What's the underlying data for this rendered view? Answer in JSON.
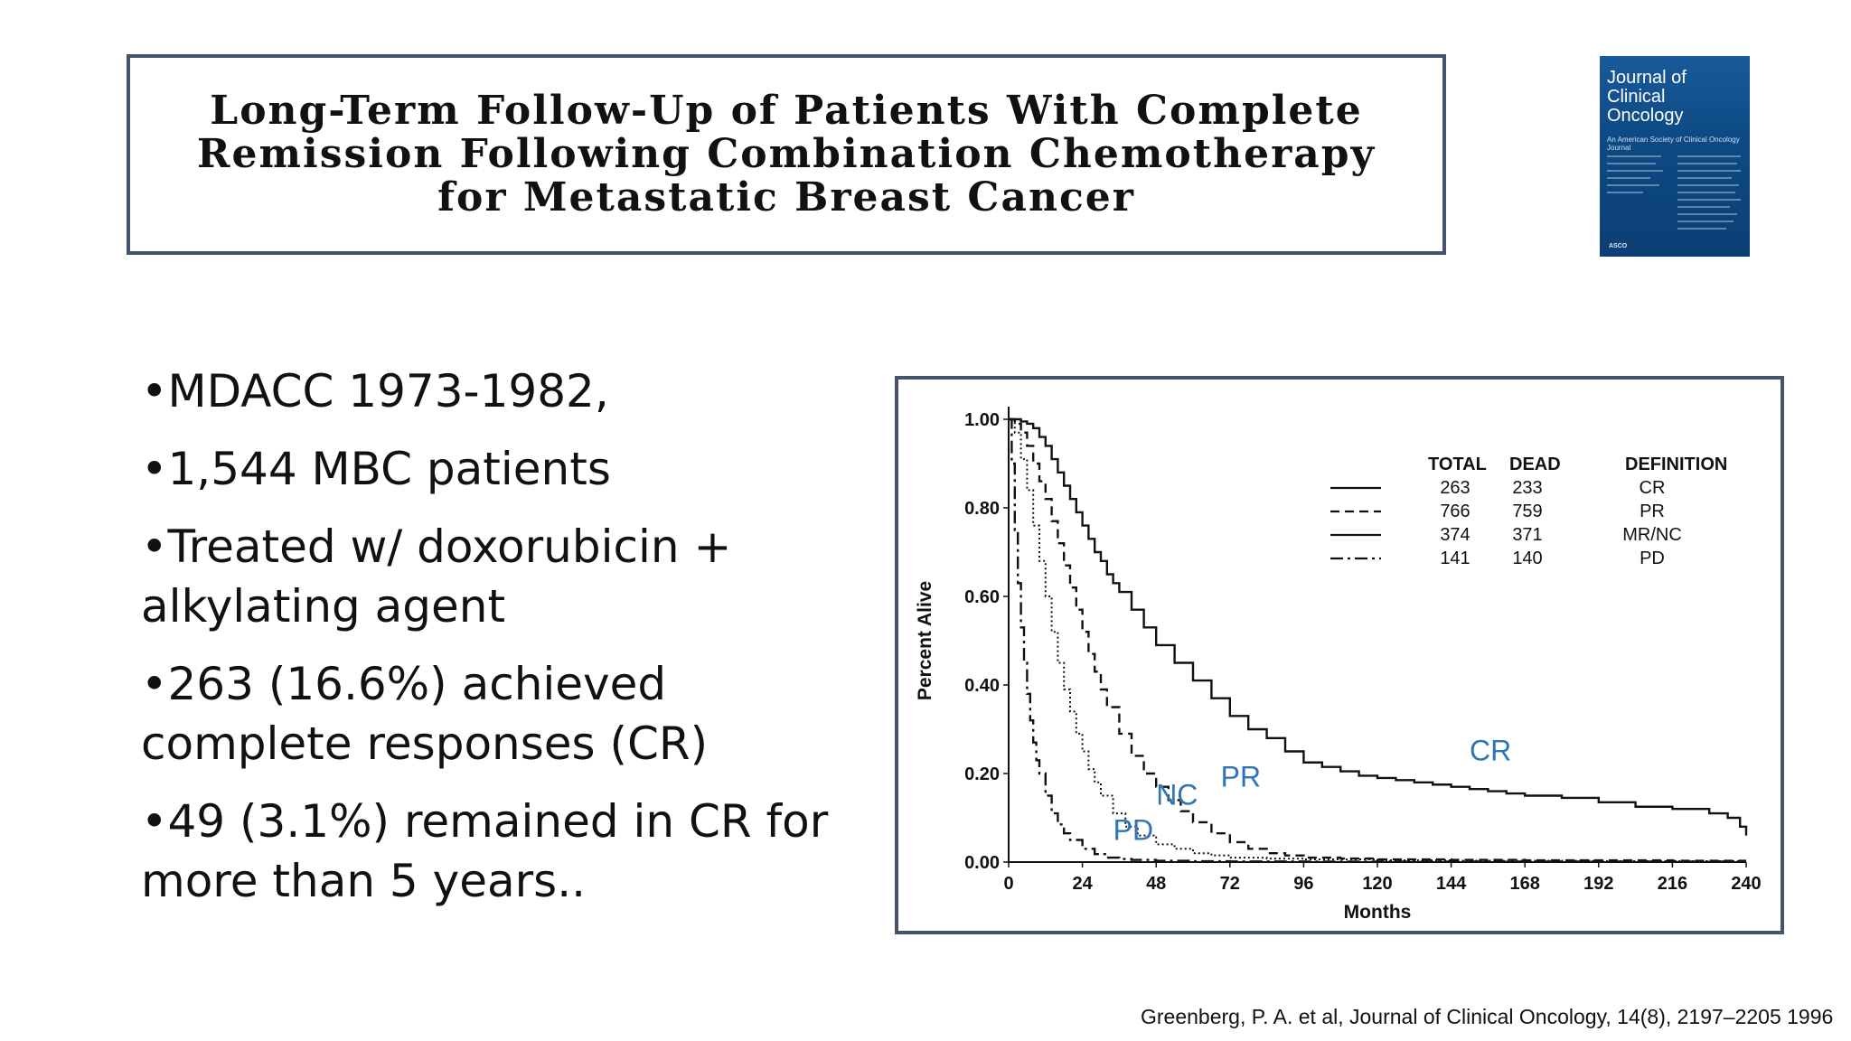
{
  "slide": {
    "title": "Long-Term Follow-Up of Patients With Complete Remission Following Combination Chemotherapy for Metastatic Breast Cancer",
    "journal_cover": {
      "name": "Journal of Clinical Oncology",
      "subtitle": "An American Society of Clinical Oncology Journal",
      "publisher": "ASCO"
    },
    "bullets": [
      "•MDACC 1973-1982,",
      "•1,544 MBC patients",
      "•Treated w/ doxorubicin + alkylating agent",
      "•263 (16.6%) achieved complete responses (CR)",
      "•49 (3.1%) remained in CR for more than 5 years.."
    ],
    "citation": "Greenberg, P. A. et al, Journal of Clinical Oncology, 14(8), 2197–2205 1996"
  },
  "chart_data": {
    "type": "line",
    "title": "",
    "xlabel": "Months",
    "ylabel": "Percent Alive",
    "xlim": [
      0,
      240
    ],
    "ylim": [
      0,
      1
    ],
    "x_ticks": [
      0,
      24,
      48,
      72,
      96,
      120,
      144,
      168,
      192,
      216,
      240
    ],
    "y_ticks": [
      "0.00",
      "0.20",
      "0.40",
      "0.60",
      "0.80",
      "1.00"
    ],
    "grid": false,
    "legend": {
      "position": "top-right",
      "headers": [
        "TOTAL",
        "DEAD",
        "DEFINITION"
      ],
      "rows": [
        {
          "total": "263",
          "dead": "233",
          "definition": "CR",
          "style": "solid"
        },
        {
          "total": "766",
          "dead": "759",
          "definition": "PR",
          "style": "dashed"
        },
        {
          "total": "374",
          "dead": "371",
          "definition": "MR/NC",
          "style": "solid"
        },
        {
          "total": "141",
          "dead": "140",
          "definition": "PD",
          "style": "dashdot"
        }
      ]
    },
    "annotations": [
      {
        "text": "CR",
        "x": 150,
        "y": 0.23
      },
      {
        "text": "PR",
        "x": 69,
        "y": 0.17
      },
      {
        "text": "NC",
        "x": 48,
        "y": 0.13
      },
      {
        "text": "PD",
        "x": 34,
        "y": 0.05
      }
    ],
    "annotation_color": "#2e75b6",
    "series": [
      {
        "name": "CR",
        "style": "solid",
        "x": [
          0,
          2,
          4,
          6,
          8,
          10,
          12,
          14,
          16,
          18,
          20,
          22,
          24,
          26,
          28,
          30,
          32,
          34,
          36,
          40,
          44,
          48,
          54,
          60,
          66,
          72,
          78,
          84,
          90,
          96,
          102,
          108,
          114,
          120,
          126,
          132,
          138,
          144,
          150,
          156,
          162,
          168,
          180,
          192,
          204,
          216,
          228,
          234,
          238,
          240
        ],
        "y": [
          1.0,
          1.0,
          0.995,
          0.99,
          0.98,
          0.96,
          0.94,
          0.91,
          0.88,
          0.85,
          0.82,
          0.79,
          0.76,
          0.73,
          0.7,
          0.68,
          0.65,
          0.63,
          0.61,
          0.57,
          0.53,
          0.49,
          0.45,
          0.41,
          0.37,
          0.33,
          0.3,
          0.28,
          0.25,
          0.225,
          0.215,
          0.205,
          0.195,
          0.19,
          0.185,
          0.18,
          0.175,
          0.17,
          0.165,
          0.16,
          0.155,
          0.15,
          0.145,
          0.135,
          0.125,
          0.12,
          0.11,
          0.1,
          0.08,
          0.06
        ]
      },
      {
        "name": "PR",
        "style": "dashed",
        "x": [
          0,
          2,
          4,
          6,
          8,
          10,
          12,
          14,
          16,
          18,
          20,
          22,
          24,
          26,
          28,
          30,
          32,
          36,
          40,
          44,
          48,
          52,
          56,
          60,
          66,
          72,
          78,
          84,
          90,
          96,
          108,
          120,
          144,
          168,
          192,
          216,
          240
        ],
        "y": [
          1.0,
          0.99,
          0.97,
          0.94,
          0.9,
          0.86,
          0.82,
          0.77,
          0.72,
          0.67,
          0.62,
          0.57,
          0.52,
          0.47,
          0.43,
          0.39,
          0.35,
          0.29,
          0.24,
          0.2,
          0.17,
          0.14,
          0.115,
          0.09,
          0.065,
          0.045,
          0.03,
          0.02,
          0.015,
          0.01,
          0.008,
          0.006,
          0.005,
          0.004,
          0.004,
          0.003,
          0.003
        ]
      },
      {
        "name": "NC",
        "style": "dotted",
        "x": [
          0,
          2,
          4,
          6,
          8,
          10,
          12,
          14,
          16,
          18,
          20,
          22,
          24,
          26,
          28,
          30,
          34,
          38,
          42,
          48,
          54,
          60,
          66,
          72,
          84,
          96,
          120,
          144,
          192,
          240
        ],
        "y": [
          1.0,
          0.97,
          0.91,
          0.84,
          0.76,
          0.68,
          0.6,
          0.52,
          0.45,
          0.39,
          0.34,
          0.29,
          0.25,
          0.21,
          0.18,
          0.15,
          0.11,
          0.08,
          0.06,
          0.04,
          0.03,
          0.02,
          0.015,
          0.01,
          0.008,
          0.006,
          0.004,
          0.003,
          0.002,
          0.002
        ]
      },
      {
        "name": "PD",
        "style": "dashdot",
        "x": [
          0,
          1,
          2,
          3,
          4,
          5,
          6,
          7,
          8,
          9,
          10,
          12,
          14,
          16,
          18,
          20,
          24,
          28,
          32,
          36,
          40,
          48,
          60,
          72,
          96,
          120,
          144,
          192,
          240
        ],
        "y": [
          1.0,
          0.9,
          0.75,
          0.63,
          0.53,
          0.45,
          0.38,
          0.32,
          0.27,
          0.23,
          0.2,
          0.15,
          0.11,
          0.085,
          0.065,
          0.05,
          0.03,
          0.018,
          0.01,
          0.007,
          0.005,
          0.003,
          0.002,
          0.0015,
          0.001,
          0.001,
          0.001,
          0.001,
          0.001
        ]
      }
    ]
  }
}
